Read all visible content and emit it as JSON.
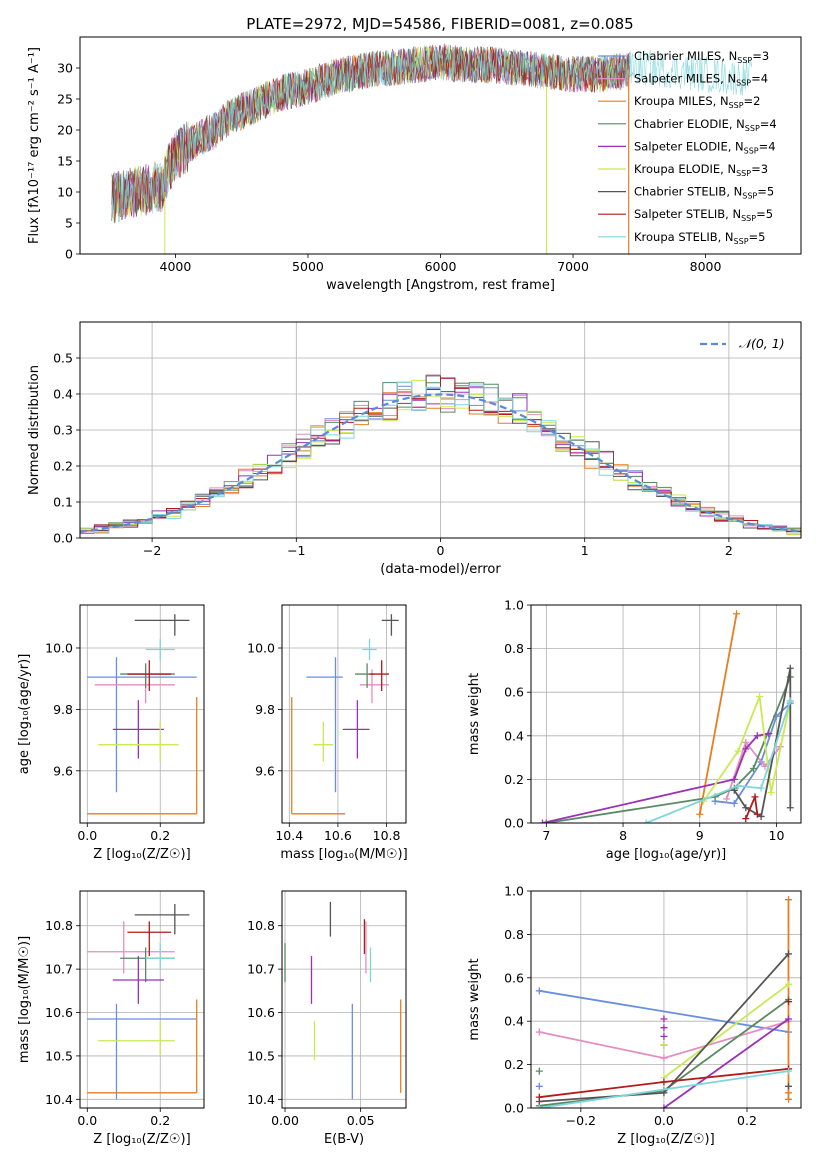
{
  "figure": {
    "title": "PLATE=2972, MJD=54586, FIBERID=0081, z=0.085"
  },
  "colors": {
    "Chabrier MILES": "#6a8fdc",
    "Salpeter MILES": "#e38ec0",
    "Kroupa MILES": "#e67e22",
    "Chabrier ELODIE": "#5a8a62",
    "Salpeter ELODIE": "#9b30b8",
    "Kroupa ELODIE": "#c8ea52",
    "Chabrier STELIB": "#555555",
    "Salpeter STELIB": "#b01c1c",
    "Kroupa STELIB": "#7ed6dc"
  },
  "chart_data": [
    {
      "id": "spectrum",
      "type": "line",
      "title": "PLATE=2972, MJD=54586, FIBERID=0081, z=0.085",
      "xlabel": "wavelength [Angstrom, rest frame]",
      "ylabel": "Flux [fλ10⁻¹⁷ erg cm⁻² s⁻¹ A⁻¹]",
      "xlim": [
        3280,
        8720
      ],
      "ylim": [
        0,
        35
      ],
      "xticks": [
        4000,
        5000,
        6000,
        7000,
        8000
      ],
      "yticks": [
        0,
        5,
        10,
        15,
        20,
        25,
        30
      ],
      "grid": false,
      "legend_position": "top-right",
      "series": [
        {
          "name": "Chabrier MILES, N",
          "sub": "SSP",
          "suffix": "=3",
          "key": "Chabrier MILES"
        },
        {
          "name": "Salpeter MILES, N",
          "sub": "SSP",
          "suffix": "=4",
          "key": "Salpeter MILES"
        },
        {
          "name": "Kroupa MILES, N",
          "sub": "SSP",
          "suffix": "=2",
          "key": "Kroupa MILES"
        },
        {
          "name": "Chabrier ELODIE, N",
          "sub": "SSP",
          "suffix": "=4",
          "key": "Chabrier ELODIE"
        },
        {
          "name": "Salpeter ELODIE, N",
          "sub": "SSP",
          "suffix": "=4",
          "key": "Salpeter ELODIE"
        },
        {
          "name": "Kroupa ELODIE, N",
          "sub": "SSP",
          "suffix": "=3",
          "key": "Kroupa ELODIE"
        },
        {
          "name": "Chabrier STELIB, N",
          "sub": "SSP",
          "suffix": "=5",
          "key": "Chabrier STELIB"
        },
        {
          "name": "Salpeter STELIB, N",
          "sub": "SSP",
          "suffix": "=5",
          "key": "Salpeter STELIB"
        },
        {
          "name": "Kroupa STELIB, N",
          "sub": "SSP",
          "suffix": "=5",
          "key": "Kroupa STELIB"
        }
      ],
      "continuum": {
        "x": [
          3520,
          3600,
          3700,
          3800,
          3900,
          3950,
          4000,
          4100,
          4200,
          4300,
          4400,
          4500,
          4600,
          4700,
          4800,
          4900,
          5000,
          5200,
          5400,
          5600,
          5800,
          6000,
          6200,
          6400,
          6600,
          6800,
          7000,
          7200,
          7400,
          7500,
          7600,
          7800,
          8000,
          8200
        ],
        "y": [
          9,
          9.5,
          10,
          10.5,
          11,
          14,
          16,
          17.5,
          19,
          20,
          22,
          23,
          24,
          25,
          26,
          26.5,
          27,
          28.5,
          29.5,
          30,
          30.5,
          31,
          30.5,
          30.5,
          30,
          29.5,
          29,
          29,
          29.5,
          30,
          30,
          29.5,
          29,
          28.5
        ]
      }
    },
    {
      "id": "residuals",
      "type": "line",
      "xlabel": "(data-model)/error",
      "ylabel": "Normed distribution",
      "xlim": [
        -2.5,
        2.5
      ],
      "ylim": [
        0,
        0.6
      ],
      "xticks": [
        -2,
        -1,
        0,
        1,
        2
      ],
      "xticklabels": [
        "−2",
        "−1",
        "0",
        "1",
        "2"
      ],
      "yticks": [
        0,
        0.1,
        0.2,
        0.3,
        0.4,
        0.5
      ],
      "yticklabels": [
        "0.0",
        "0.1",
        "0.2",
        "0.3",
        "0.4",
        "0.5"
      ],
      "grid": true,
      "legend_position": "top-right",
      "legend_label": "𝒩(0, 1)",
      "gaussian": {
        "mean": 0,
        "sigma": 1
      }
    },
    {
      "id": "age-vs-z",
      "type": "scatter",
      "xlabel": "Z [log₁₀(Z/Z☉)]",
      "ylabel": "age  [log₁₀(age/yr)]",
      "xlim": [
        -0.02,
        0.32
      ],
      "ylim": [
        9.43,
        10.14
      ],
      "xticks": [
        0.0,
        0.2
      ],
      "xticklabels": [
        "0.0",
        "0.2"
      ],
      "yticks": [
        9.6,
        9.8,
        10.0
      ],
      "yticklabels": [
        "9.6",
        "9.8",
        "10.0"
      ],
      "grid": true,
      "points": [
        {
          "key": "Chabrier MILES",
          "x": 0.08,
          "y": 9.905,
          "x_lo": 0.0,
          "x_hi": 0.3,
          "y_lo": 9.53,
          "y_hi": 9.97
        },
        {
          "key": "Salpeter MILES",
          "x": 0.16,
          "y": 9.88,
          "x_lo": 0.02,
          "x_hi": 0.24,
          "y_lo": 9.82,
          "y_hi": 9.93
        },
        {
          "key": "Kroupa MILES",
          "x": 0.3,
          "y": 9.46,
          "x_lo": 0.0,
          "x_hi": 0.3,
          "y_lo": 9.46,
          "y_hi": 9.84
        },
        {
          "key": "Chabrier ELODIE",
          "x": 0.16,
          "y": 9.915,
          "x_lo": 0.09,
          "x_hi": 0.24,
          "y_lo": 9.87,
          "y_hi": 9.95
        },
        {
          "key": "Salpeter ELODIE",
          "x": 0.14,
          "y": 9.735,
          "x_lo": 0.07,
          "x_hi": 0.21,
          "y_lo": 9.64,
          "y_hi": 9.83
        },
        {
          "key": "Kroupa ELODIE",
          "x": 0.2,
          "y": 9.685,
          "x_lo": 0.03,
          "x_hi": 0.25,
          "y_lo": 9.63,
          "y_hi": 9.76
        },
        {
          "key": "Chabrier STELIB",
          "x": 0.24,
          "y": 10.09,
          "x_lo": 0.13,
          "x_hi": 0.28,
          "y_lo": 10.04,
          "y_hi": 10.11
        },
        {
          "key": "Salpeter STELIB",
          "x": 0.17,
          "y": 9.915,
          "x_lo": 0.11,
          "x_hi": 0.23,
          "y_lo": 9.86,
          "y_hi": 9.96
        },
        {
          "key": "Kroupa STELIB",
          "x": 0.2,
          "y": 9.995,
          "x_lo": 0.16,
          "x_hi": 0.24,
          "y_lo": 9.96,
          "y_hi": 10.03
        }
      ]
    },
    {
      "id": "age-vs-mass",
      "type": "scatter",
      "xlabel": "mass [log₁₀(M/M☉)]",
      "ylabel": "",
      "xlim": [
        10.37,
        10.88
      ],
      "ylim": [
        9.43,
        10.14
      ],
      "xticks": [
        10.4,
        10.6,
        10.8
      ],
      "xticklabels": [
        "10.4",
        "10.6",
        "10.8"
      ],
      "yticks": [
        9.6,
        9.8,
        10.0
      ],
      "yticklabels": [
        "9.6",
        "9.8",
        "10.0"
      ],
      "grid": true,
      "points": [
        {
          "key": "Chabrier MILES",
          "x": 10.59,
          "y": 9.905,
          "x_lo": 10.47,
          "x_hi": 10.62,
          "y_lo": 9.53,
          "y_hi": 9.97
        },
        {
          "key": "Salpeter MILES",
          "x": 10.74,
          "y": 9.88,
          "x_lo": 10.69,
          "x_hi": 10.81,
          "y_lo": 9.82,
          "y_hi": 9.93
        },
        {
          "key": "Kroupa MILES",
          "x": 10.41,
          "y": 9.46,
          "x_lo": 10.41,
          "x_hi": 10.63,
          "y_lo": 9.46,
          "y_hi": 9.84
        },
        {
          "key": "Chabrier ELODIE",
          "x": 10.72,
          "y": 9.915,
          "x_lo": 10.67,
          "x_hi": 10.75,
          "y_lo": 9.87,
          "y_hi": 9.95
        },
        {
          "key": "Salpeter ELODIE",
          "x": 10.68,
          "y": 9.735,
          "x_lo": 10.62,
          "x_hi": 10.73,
          "y_lo": 9.64,
          "y_hi": 9.83
        },
        {
          "key": "Kroupa ELODIE",
          "x": 10.54,
          "y": 9.685,
          "x_lo": 10.5,
          "x_hi": 10.58,
          "y_lo": 9.63,
          "y_hi": 9.76
        },
        {
          "key": "Chabrier STELIB",
          "x": 10.82,
          "y": 10.09,
          "x_lo": 10.78,
          "x_hi": 10.85,
          "y_lo": 10.04,
          "y_hi": 10.11
        },
        {
          "key": "Salpeter STELIB",
          "x": 10.78,
          "y": 9.915,
          "x_lo": 10.73,
          "x_hi": 10.81,
          "y_lo": 9.86,
          "y_hi": 9.96
        },
        {
          "key": "Kroupa STELIB",
          "x": 10.73,
          "y": 9.995,
          "x_lo": 10.7,
          "x_hi": 10.76,
          "y_lo": 9.96,
          "y_hi": 10.03
        }
      ]
    },
    {
      "id": "weight-vs-age",
      "type": "line",
      "xlabel": "age  [log₁₀(age/yr)]",
      "ylabel": "mass weight",
      "xlim": [
        6.8,
        10.32
      ],
      "ylim": [
        0,
        1
      ],
      "xticks": [
        7,
        8,
        9,
        10
      ],
      "xticklabels": [
        "7",
        "8",
        "9",
        "10"
      ],
      "yticks": [
        0,
        0.2,
        0.4,
        0.6,
        0.8,
        1.0
      ],
      "yticklabels": [
        "0.0",
        "0.2",
        "0.4",
        "0.6",
        "0.8",
        "1.0"
      ],
      "grid": true,
      "series": [
        {
          "key": "Chabrier MILES",
          "x": [
            9.2,
            9.45,
            9.8,
            10.0,
            10.18
          ],
          "y": [
            0.1,
            0.09,
            0.28,
            0.49,
            0.55
          ]
        },
        {
          "key": "Salpeter MILES",
          "x": [
            9.35,
            9.6,
            9.85,
            10.05
          ],
          "y": [
            0.11,
            0.37,
            0.26,
            0.35
          ]
        },
        {
          "key": "Kroupa MILES",
          "x": [
            9.0,
            9.48
          ],
          "y": [
            0.04,
            0.96
          ]
        },
        {
          "key": "Chabrier ELODIE",
          "x": [
            7.0,
            9.2,
            9.45,
            9.7,
            10.18
          ],
          "y": [
            0.0,
            0.12,
            0.16,
            0.25,
            0.67
          ]
        },
        {
          "key": "Salpeter ELODIE",
          "x": [
            6.95,
            9.45,
            9.6,
            9.75,
            9.9
          ],
          "y": [
            0.0,
            0.2,
            0.34,
            0.4,
            0.41
          ]
        },
        {
          "key": "Kroupa ELODIE",
          "x": [
            9.05,
            9.5,
            9.78,
            9.93,
            10.18
          ],
          "y": [
            0.1,
            0.33,
            0.58,
            0.14,
            0.56
          ]
        },
        {
          "key": "Chabrier STELIB",
          "x": [
            9.45,
            9.6,
            9.8,
            10.18,
            10.18
          ],
          "y": [
            0.15,
            0.07,
            0.03,
            0.71,
            0.07
          ]
        },
        {
          "key": "Salpeter STELIB",
          "x": [
            9.6,
            9.72,
            9.75
          ],
          "y": [
            0.02,
            0.12,
            0.04
          ]
        },
        {
          "key": "Kroupa STELIB",
          "x": [
            8.3,
            9.5,
            9.8,
            10.18
          ],
          "y": [
            0.0,
            0.17,
            0.16,
            0.56
          ]
        }
      ]
    },
    {
      "id": "mass-vs-z",
      "type": "scatter",
      "xlabel": "Z [log₁₀(Z/Z☉)]",
      "ylabel": "mass [log₁₀(M/M☉)]",
      "xlim": [
        -0.02,
        0.32
      ],
      "ylim": [
        10.38,
        10.88
      ],
      "xticks": [
        0.0,
        0.2
      ],
      "xticklabels": [
        "0.0",
        "0.2"
      ],
      "yticks": [
        10.4,
        10.5,
        10.6,
        10.7,
        10.8
      ],
      "yticklabels": [
        "10.4",
        "10.5",
        "10.6",
        "10.7",
        "10.8"
      ],
      "grid": true,
      "points": [
        {
          "key": "Chabrier MILES",
          "x": 0.08,
          "y": 10.585,
          "x_lo": 0.0,
          "x_hi": 0.3,
          "y_lo": 10.4,
          "y_hi": 10.62
        },
        {
          "key": "Salpeter MILES",
          "x": 0.1,
          "y": 10.74,
          "x_lo": 0.0,
          "x_hi": 0.24,
          "y_lo": 10.69,
          "y_hi": 10.81
        },
        {
          "key": "Kroupa MILES",
          "x": 0.3,
          "y": 10.415,
          "x_lo": 0.0,
          "x_hi": 0.3,
          "y_lo": 10.415,
          "y_hi": 10.63
        },
        {
          "key": "Chabrier ELODIE",
          "x": 0.16,
          "y": 10.725,
          "x_lo": 0.09,
          "x_hi": 0.24,
          "y_lo": 10.67,
          "y_hi": 10.75
        },
        {
          "key": "Salpeter ELODIE",
          "x": 0.14,
          "y": 10.675,
          "x_lo": 0.07,
          "x_hi": 0.21,
          "y_lo": 10.62,
          "y_hi": 10.73
        },
        {
          "key": "Kroupa ELODIE",
          "x": 0.2,
          "y": 10.535,
          "x_lo": 0.03,
          "x_hi": 0.24,
          "y_lo": 10.5,
          "y_hi": 10.58
        },
        {
          "key": "Chabrier STELIB",
          "x": 0.24,
          "y": 10.825,
          "x_lo": 0.13,
          "x_hi": 0.28,
          "y_lo": 10.78,
          "y_hi": 10.85
        },
        {
          "key": "Salpeter STELIB",
          "x": 0.17,
          "y": 10.785,
          "x_lo": 0.11,
          "x_hi": 0.23,
          "y_lo": 10.73,
          "y_hi": 10.81
        },
        {
          "key": "Kroupa STELIB",
          "x": 0.2,
          "y": 10.725,
          "x_lo": 0.16,
          "x_hi": 0.24,
          "y_lo": 10.7,
          "y_hi": 10.76
        }
      ]
    },
    {
      "id": "mass-vs-ebv",
      "type": "scatter",
      "xlabel": "E(B-V)",
      "ylabel": "",
      "xlim": [
        -0.002,
        0.08
      ],
      "ylim": [
        10.38,
        10.88
      ],
      "xticks": [
        0.0,
        0.05
      ],
      "xticklabels": [
        "0.00",
        "0.05"
      ],
      "yticks": [
        10.4,
        10.5,
        10.6,
        10.7,
        10.8
      ],
      "yticklabels": [
        "10.4",
        "10.5",
        "10.6",
        "10.7",
        "10.8"
      ],
      "grid": true,
      "points": [
        {
          "key": "Chabrier MILES",
          "x": 0.0445,
          "y": 10.52,
          "y_lo": 10.4,
          "y_hi": 10.62
        },
        {
          "key": "Salpeter MILES",
          "x": 0.0535,
          "y": 10.74,
          "y_lo": 10.69,
          "y_hi": 10.81
        },
        {
          "key": "Kroupa MILES",
          "x": 0.0765,
          "y": 10.52,
          "y_lo": 10.415,
          "y_hi": 10.63
        },
        {
          "key": "Chabrier ELODIE",
          "x": 0.0,
          "y": 10.715,
          "y_lo": 10.67,
          "y_hi": 10.76
        },
        {
          "key": "Salpeter ELODIE",
          "x": 0.0175,
          "y": 10.675,
          "y_lo": 10.62,
          "y_hi": 10.73
        },
        {
          "key": "Kroupa ELODIE",
          "x": 0.0195,
          "y": 10.54,
          "y_lo": 10.49,
          "y_hi": 10.58
        },
        {
          "key": "Chabrier STELIB",
          "x": 0.03,
          "y": 10.815,
          "y_lo": 10.775,
          "y_hi": 10.855
        },
        {
          "key": "Salpeter STELIB",
          "x": 0.0525,
          "y": 10.785,
          "y_lo": 10.735,
          "y_hi": 10.815
        },
        {
          "key": "Kroupa STELIB",
          "x": 0.0565,
          "y": 10.71,
          "y_lo": 10.67,
          "y_hi": 10.75
        }
      ]
    },
    {
      "id": "weight-vs-z",
      "type": "line",
      "xlabel": "Z [log₁₀(Z/Z☉)]",
      "ylabel": "mass weight",
      "xlim": [
        -0.32,
        0.33
      ],
      "ylim": [
        0,
        1
      ],
      "xticks": [
        -0.2,
        0.0,
        0.2
      ],
      "xticklabels": [
        "−0.2",
        "0.0",
        "0.2"
      ],
      "yticks": [
        0,
        0.2,
        0.4,
        0.6,
        0.8,
        1.0
      ],
      "yticklabels": [
        "0.0",
        "0.2",
        "0.4",
        "0.6",
        "0.8",
        "1.0"
      ],
      "grid": true,
      "series": [
        {
          "key": "Chabrier MILES",
          "x": [
            -0.3,
            0.3
          ],
          "y": [
            0.54,
            0.35
          ]
        },
        {
          "key": "Salpeter MILES",
          "x": [
            -0.3,
            0.0,
            0.3
          ],
          "y": [
            0.35,
            0.23,
            0.4
          ]
        },
        {
          "key": "Kroupa MILES",
          "x": [
            0.3,
            0.3
          ],
          "y": [
            0.04,
            0.96
          ]
        },
        {
          "key": "Chabrier ELODIE",
          "x": [
            -0.3,
            0.0,
            0.3
          ],
          "y": [
            0.01,
            0.08,
            0.5
          ]
        },
        {
          "key": "Salpeter ELODIE",
          "x": [
            0.0,
            0.3
          ],
          "y": [
            0.0,
            0.41
          ]
        },
        {
          "key": "Kroupa ELODIE",
          "x": [
            0.0,
            0.3
          ],
          "y": [
            0.14,
            0.57
          ]
        },
        {
          "key": "Chabrier STELIB",
          "x": [
            -0.3,
            0.0,
            0.3
          ],
          "y": [
            0.03,
            0.07,
            0.71
          ]
        },
        {
          "key": "Salpeter STELIB",
          "x": [
            -0.3,
            0.0,
            0.3
          ],
          "y": [
            0.05,
            0.12,
            0.18
          ]
        },
        {
          "key": "Kroupa STELIB",
          "x": [
            -0.3,
            0.3
          ],
          "y": [
            0.0,
            0.17
          ]
        }
      ],
      "markers": [
        {
          "key": "Chabrier MILES",
          "x": -0.3,
          "y": 0.1
        },
        {
          "key": "Chabrier ELODIE",
          "x": -0.3,
          "y": 0.17
        },
        {
          "key": "Salpeter ELODIE",
          "x": 0.0,
          "y": 0.41
        },
        {
          "key": "Salpeter ELODIE",
          "x": 0.0,
          "y": 0.37
        },
        {
          "key": "Salpeter ELODIE",
          "x": 0.0,
          "y": 0.33
        },
        {
          "key": "Salpeter ELODIE",
          "x": 0.0,
          "y": 0.29
        },
        {
          "key": "Kroupa ELODIE",
          "x": 0.0,
          "y": 0.29
        },
        {
          "key": "Chabrier STELIB",
          "x": 0.3,
          "y": 0.1
        },
        {
          "key": "Kroupa MILES",
          "x": 0.3,
          "y": 0.07
        },
        {
          "key": "Salpeter STELIB",
          "x": 0.3,
          "y": 0.49
        }
      ]
    }
  ]
}
